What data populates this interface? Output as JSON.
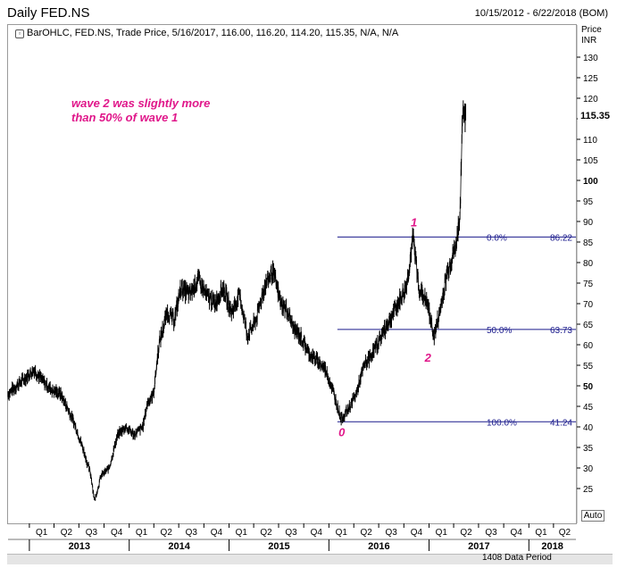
{
  "header": {
    "title": "Daily FED.NS",
    "date_range": "10/15/2012 - 6/22/2018 (BOM)"
  },
  "legend": {
    "icon": "chart-settings-icon",
    "text": "BarOHLC, FED.NS, Trade Price, 5/16/2017, 116.00, 116.20, 114.20, 115.35, N/A, N/A"
  },
  "y_axis": {
    "header_line1": "Price",
    "header_line2": "INR",
    "last_price": "115.35"
  },
  "annotation": {
    "line1": "wave 2 was slightly more",
    "line2": "than 50% of wave 1"
  },
  "controls": {
    "auto_label": "Auto",
    "data_period": "1408 Data Period"
  },
  "colors": {
    "fib_line": "#1a1a8c",
    "annotation": "#e0178a",
    "price_bars": "#000000"
  },
  "chart_data": {
    "type": "line",
    "subtype": "ohlc-bar",
    "title": "Daily FED.NS",
    "xlabel": "",
    "ylabel": "Price INR",
    "ylim": [
      20,
      135
    ],
    "y_ticks": [
      25,
      30,
      35,
      40,
      45,
      50,
      55,
      60,
      65,
      70,
      75,
      80,
      85,
      90,
      95,
      100,
      105,
      110,
      115,
      120,
      125,
      130
    ],
    "x_quarter_labels": [
      "Q1",
      "Q2",
      "Q3",
      "Q4",
      "Q1",
      "Q2",
      "Q3",
      "Q4",
      "Q1",
      "Q2",
      "Q3",
      "Q4",
      "Q1",
      "Q2",
      "Q3",
      "Q4",
      "Q1",
      "Q2",
      "Q3",
      "Q4",
      "Q1",
      "Q2"
    ],
    "x_years": [
      "2013",
      "2014",
      "2015",
      "2016",
      "2017",
      "2018"
    ],
    "x_range": [
      "2012-10-15",
      "2018-06-22"
    ],
    "series": [
      {
        "values_note_dates_are_approximate": false,
        "x": [
          "2012-10-15",
          "2012-11-15",
          "2012-12-20",
          "2013-01-20",
          "2013-02-20",
          "2013-03-25",
          "2013-04-25",
          "2013-05-25",
          "2013-06-20",
          "2013-07-20",
          "2013-08-15",
          "2013-08-28",
          "2013-09-20",
          "2013-10-20",
          "2013-11-20",
          "2013-12-20",
          "2014-01-20",
          "2014-02-20",
          "2014-03-10",
          "2014-03-31",
          "2014-04-20",
          "2014-05-20",
          "2014-06-15",
          "2014-07-10",
          "2014-08-10",
          "2014-09-10",
          "2014-10-10",
          "2014-11-10",
          "2014-12-10",
          "2015-01-10",
          "2015-02-10",
          "2015-03-10",
          "2015-04-10",
          "2015-05-10",
          "2015-06-10",
          "2015-07-10",
          "2015-08-05",
          "2015-08-25",
          "2015-09-20",
          "2015-10-20",
          "2015-11-20",
          "2015-12-20",
          "2016-01-20",
          "2016-02-15",
          "2016-03-10",
          "2016-04-10",
          "2016-05-10",
          "2016-06-10",
          "2016-07-10",
          "2016-08-10",
          "2016-09-10",
          "2016-10-10",
          "2016-11-05",
          "2016-11-25",
          "2016-12-26",
          "2017-01-20",
          "2017-02-10",
          "2017-03-10",
          "2017-04-10",
          "2017-04-25",
          "2017-05-05",
          "2017-05-16"
        ],
        "values": [
          48,
          50,
          52,
          54,
          51,
          49,
          48,
          44,
          40,
          34,
          28,
          22,
          28,
          30,
          38,
          40,
          38,
          40,
          46,
          48,
          60,
          68,
          66,
          74,
          72,
          76,
          72,
          70,
          74,
          68,
          72,
          62,
          66,
          74,
          78,
          70,
          68,
          64,
          62,
          58,
          56,
          54,
          48,
          42,
          44,
          48,
          55,
          58,
          62,
          66,
          70,
          74,
          86,
          74,
          70,
          62,
          68,
          78,
          84,
          92,
          118,
          115.35
        ]
      }
    ],
    "wave_labels": [
      {
        "label": "0",
        "x": "2016-02-15",
        "y": 41.24
      },
      {
        "label": "1",
        "x": "2016-11-05",
        "y": 86.22
      },
      {
        "label": "2",
        "x": "2016-12-26",
        "y": 62
      }
    ],
    "fibonacci_levels": [
      {
        "label": "0.0%",
        "value": 86.22,
        "value_label": "86.22"
      },
      {
        "label": "50.0%",
        "value": 63.73,
        "value_label": "63.73"
      },
      {
        "label": "100.0%",
        "value": 41.24,
        "value_label": "41.24"
      }
    ],
    "grid": false,
    "legend_position": "top-left"
  }
}
